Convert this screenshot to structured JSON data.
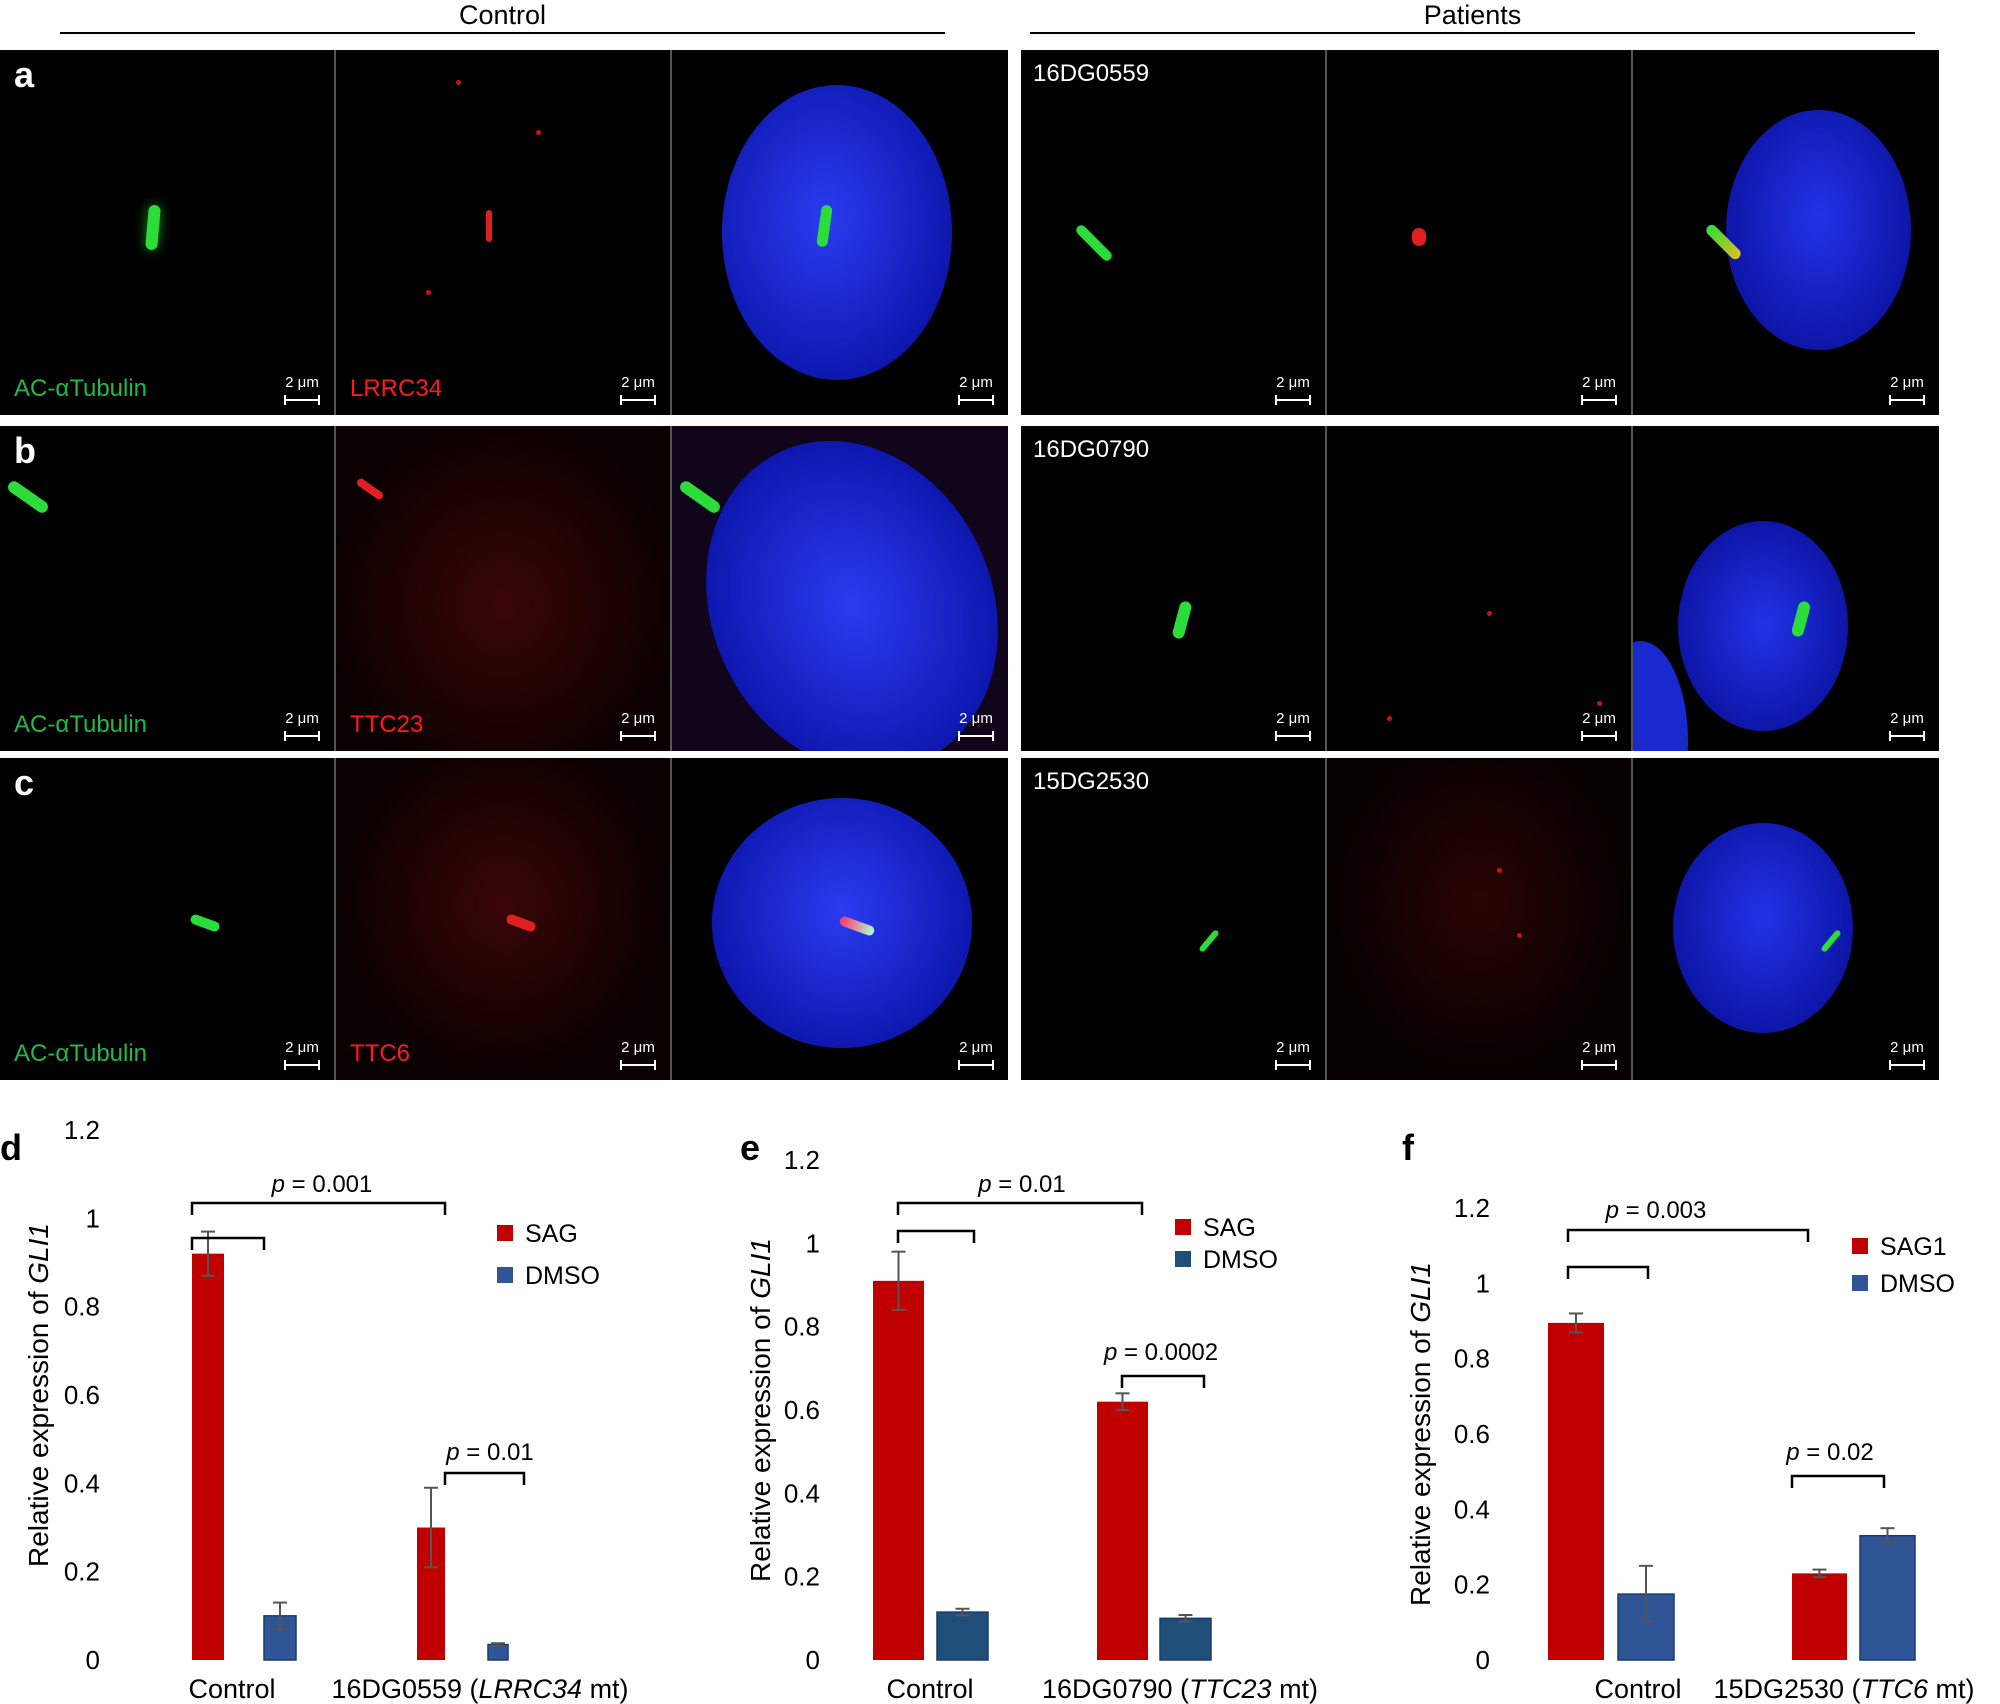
{
  "header": {
    "control": "Control",
    "patients": "Patients"
  },
  "rows": [
    {
      "letter": "a",
      "green_label": "AC-αTubulin",
      "red_label": "LRRC34",
      "patient": "16DG0559"
    },
    {
      "letter": "b",
      "green_label": "AC-αTubulin",
      "red_label": "TTC23",
      "patient": "16DG0790"
    },
    {
      "letter": "c",
      "green_label": "AC-αTubulin",
      "red_label": "TTC6",
      "patient": "15DG2530"
    }
  ],
  "scalebar": "2 μm",
  "colors": {
    "sag": "#c00000",
    "dmso_d": "#2f5597",
    "dmso_e": "#1f4e79",
    "dmso_f": "#2f5597"
  },
  "chart_data": [
    {
      "panel": "d",
      "type": "bar",
      "ylabel_prefix": "Relative expression of ",
      "ylabel_gene": "GLI1",
      "ylim": [
        0,
        1.2
      ],
      "yticks": [
        "0",
        "0.2",
        "0.4",
        "0.6",
        "0.8",
        "1",
        "1.2"
      ],
      "categories": [
        {
          "pre": "Control",
          "ital": "",
          "post": ""
        },
        {
          "pre": "16DG0559 (",
          "ital": "LRRC34",
          "post": " mt)"
        }
      ],
      "series": [
        {
          "name": "SAG",
          "values": [
            0.92,
            0.3
          ],
          "errors": [
            0.05,
            0.09
          ]
        },
        {
          "name": "DMSO",
          "values": [
            0.1,
            0.035
          ],
          "errors": [
            0.03,
            0.003
          ]
        }
      ],
      "annotations": [
        "p = 0.001",
        "p = 0.01"
      ]
    },
    {
      "panel": "e",
      "type": "bar",
      "ylabel_prefix": "Relative expression of ",
      "ylabel_gene": "GLI1",
      "ylim": [
        0,
        1.2
      ],
      "yticks": [
        "0",
        "0.2",
        "0.4",
        "0.6",
        "0.8",
        "1",
        "1.2"
      ],
      "categories": [
        {
          "pre": "Control",
          "ital": "",
          "post": ""
        },
        {
          "pre": "16DG0790 (",
          "ital": "TTC23",
          "post": " mt)"
        }
      ],
      "series": [
        {
          "name": "SAG",
          "values": [
            0.91,
            0.62
          ],
          "errors": [
            0.07,
            0.02
          ]
        },
        {
          "name": "DMSO",
          "values": [
            0.115,
            0.1
          ],
          "errors": [
            0.008,
            0.008
          ]
        }
      ],
      "annotations": [
        "p = 0.01",
        "p = 0.0002"
      ]
    },
    {
      "panel": "f",
      "type": "bar",
      "ylabel_prefix": "Relative expression of ",
      "ylabel_gene": "GLI1",
      "ylim": [
        0,
        1.2
      ],
      "yticks": [
        "0",
        "0.2",
        "0.4",
        "0.6",
        "0.8",
        "1",
        "1.2"
      ],
      "categories": [
        {
          "pre": "Control",
          "ital": "",
          "post": ""
        },
        {
          "pre": "15DG2530 (",
          "ital": "TTC6",
          "post": " mt)"
        }
      ],
      "series": [
        {
          "name": "SAG1",
          "values": [
            0.895,
            0.23
          ],
          "errors": [
            0.025,
            0.01
          ]
        },
        {
          "name": "DMSO",
          "values": [
            0.175,
            0.33
          ],
          "errors": [
            0.075,
            0.02
          ]
        }
      ],
      "annotations": [
        "p = 0.003",
        "p = 0.02"
      ]
    }
  ]
}
